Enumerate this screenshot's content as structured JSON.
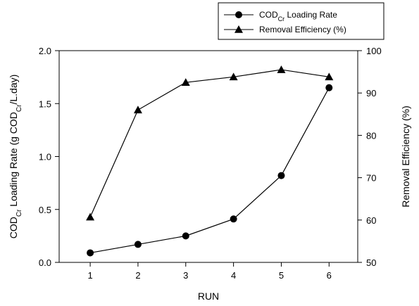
{
  "chart_data": {
    "type": "line",
    "title": "",
    "xlabel": "RUN",
    "ylabel_left": {
      "prefix": "COD",
      "sub": "Cr",
      "middle": " Loading Rate (g COD",
      "sub2": "Cr",
      "suffix": "/L.day)"
    },
    "ylabel_right": "Removal Efficiency (%)",
    "x": [
      1,
      2,
      3,
      4,
      5,
      6
    ],
    "xlim": [
      0.35,
      6.6
    ],
    "ylim_left": [
      0,
      2.0
    ],
    "ylim_right": [
      50,
      100
    ],
    "x_ticks": [
      "1",
      "2",
      "3",
      "4",
      "5",
      "6"
    ],
    "y_left_ticks": [
      "0.0",
      "0.5",
      "1.0",
      "1.5",
      "2.0"
    ],
    "y_right_ticks": [
      "50",
      "60",
      "70",
      "80",
      "90",
      "100"
    ],
    "grid": false,
    "legend_position": "top-right, outside plot",
    "series": [
      {
        "name_prefix": "COD",
        "name_sub": "Cr",
        "name_suffix": " Loading Rate",
        "axis": "left",
        "marker": "circle",
        "color": "#000000",
        "values": [
          0.09,
          0.17,
          0.25,
          0.41,
          0.82,
          1.65
        ]
      },
      {
        "name": "Removal Efficiency (%)",
        "axis": "right",
        "marker": "triangle",
        "color": "#000000",
        "values": [
          60.7,
          86.0,
          92.5,
          93.8,
          95.5,
          93.8
        ]
      }
    ]
  }
}
